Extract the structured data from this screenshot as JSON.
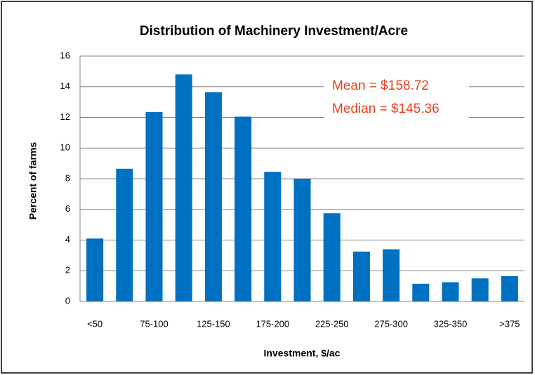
{
  "chart_data": {
    "type": "bar",
    "title": "Distribution of Machinery Investment/Acre",
    "x_label": "Investment, $/ac",
    "y_label": "Percent of farms",
    "categories": [
      "<50",
      null,
      "75-100",
      null,
      "125-150",
      null,
      "175-200",
      null,
      "225-250",
      null,
      "275-300",
      null,
      "325-350",
      null,
      ">375"
    ],
    "values": [
      4.1,
      8.65,
      12.35,
      14.8,
      13.65,
      12.05,
      8.45,
      8.0,
      5.75,
      3.25,
      3.4,
      1.15,
      1.25,
      1.5,
      1.65
    ],
    "color": "#0070c0",
    "ylim": [
      0,
      16
    ],
    "yticks": [
      0,
      2,
      4,
      6,
      8,
      10,
      12,
      14,
      16
    ],
    "grid": true,
    "annotations": [
      "Mean = $158.72",
      "Median = $145.36"
    ],
    "annotation_color": "#e8401c"
  }
}
